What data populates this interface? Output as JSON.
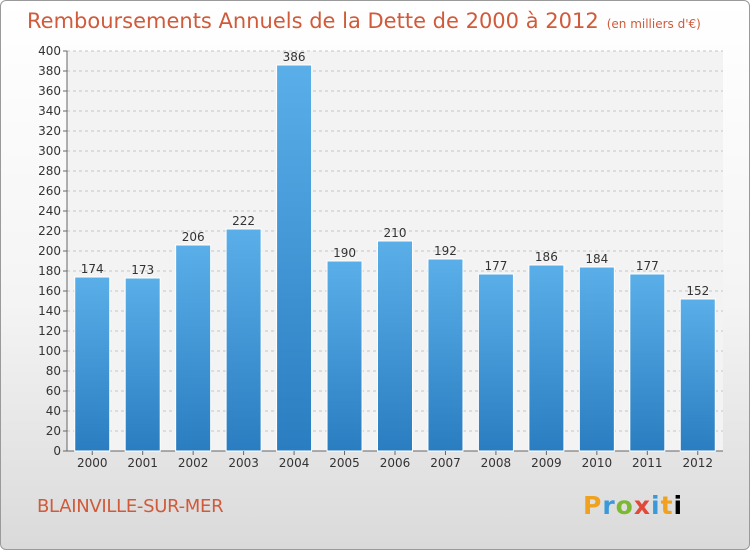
{
  "header": {
    "title": "Remboursements Annuels de la Dette de 2000 à 2012",
    "unit": "(en milliers d'€)"
  },
  "town": "BLAINVILLE-SUR-MER",
  "logo": {
    "letters": [
      "P",
      "r",
      "o",
      "x",
      "i",
      "t",
      "i"
    ],
    "icon": "proxiti-logo"
  },
  "colors": {
    "bar_top": "#5aafe9",
    "bar_bottom": "#2a7dc0",
    "text_accent": "#d05a3a"
  },
  "chart_data": {
    "type": "bar",
    "title": "Remboursements Annuels de la Dette de 2000 à 2012",
    "categories": [
      "2000",
      "2001",
      "2002",
      "2003",
      "2004",
      "2005",
      "2006",
      "2007",
      "2008",
      "2009",
      "2010",
      "2011",
      "2012"
    ],
    "values": [
      174,
      173,
      206,
      222,
      386,
      190,
      210,
      192,
      177,
      186,
      184,
      177,
      152
    ],
    "ylim": [
      0,
      400
    ],
    "ytick_step": 20,
    "grid": true,
    "legend": "none"
  }
}
